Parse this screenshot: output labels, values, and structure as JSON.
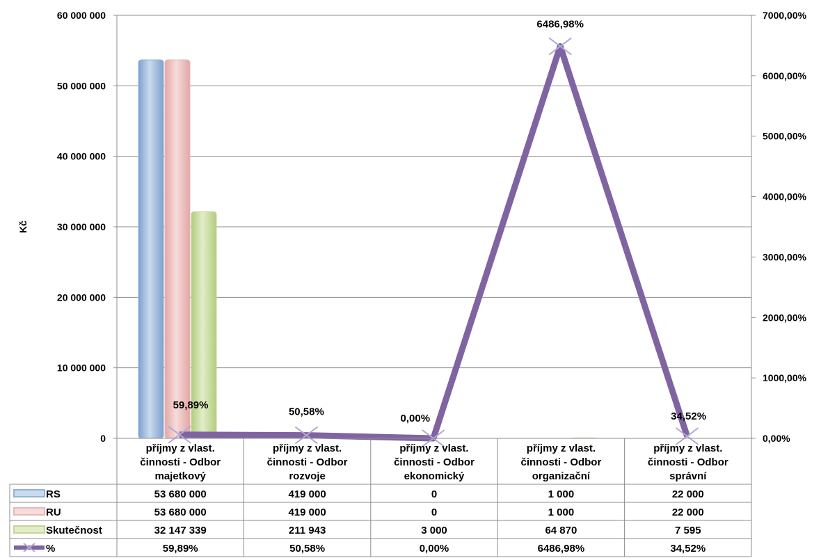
{
  "chart_data": {
    "type": "bar",
    "categories": [
      "příjmy z vlast. činnosti - Odbor majetkový",
      "příjmy z vlast. činnosti - Odbor rozvoje",
      "příjmy z vlast. činnosti - Odbor ekonomický",
      "příjmy z vlast. činnosti - Odbor organizační",
      "příjmy z vlast. činnosti - Odbor správní"
    ],
    "category_lines": [
      [
        "příjmy z vlast.",
        "činnosti - Odbor",
        "majetkový"
      ],
      [
        "příjmy z vlast.",
        "činnosti - Odbor",
        "rozvoje"
      ],
      [
        "příjmy z vlast.",
        "činnosti - Odbor",
        "ekonomický"
      ],
      [
        "příjmy z vlast.",
        "činnosti - Odbor",
        "organizační"
      ],
      [
        "příjmy z vlast.",
        "činnosti - Odbor",
        "správní"
      ]
    ],
    "series": [
      {
        "name": "RS",
        "kind": "bar",
        "color": "#95b3d7",
        "values": [
          53680000,
          419000,
          0,
          1000,
          22000
        ],
        "labels": [
          "53 680 000",
          "419 000",
          "0",
          "1 000",
          "22 000"
        ]
      },
      {
        "name": "RU",
        "kind": "bar",
        "color": "#e6b9b8",
        "values": [
          53680000,
          419000,
          0,
          1000,
          22000
        ],
        "labels": [
          "53 680 000",
          "419 000",
          "0",
          "1 000",
          "22 000"
        ]
      },
      {
        "name": "Skutečnost",
        "kind": "bar",
        "color": "#c3d69b",
        "values": [
          32147339,
          211943,
          3000,
          64870,
          7595
        ],
        "labels": [
          "32 147 339",
          "211 943",
          "3 000",
          "64 870",
          "7 595"
        ]
      },
      {
        "name": "%",
        "kind": "line",
        "axis": "secondary",
        "color": "#8064a2",
        "values": [
          59.89,
          50.58,
          0.0,
          6486.98,
          34.52
        ],
        "labels": [
          "59,89%",
          "50,58%",
          "0,00%",
          "6486,98%",
          "34,52%"
        ]
      }
    ],
    "ylabel": "Kč",
    "ylim": [
      0,
      60000000
    ],
    "y_ticks": [
      {
        "value": 0,
        "label": "0"
      },
      {
        "value": 10000000,
        "label": "10 000 000"
      },
      {
        "value": 20000000,
        "label": "20 000 000"
      },
      {
        "value": 30000000,
        "label": "30 000 000"
      },
      {
        "value": 40000000,
        "label": "40 000 000"
      },
      {
        "value": 50000000,
        "label": "50 000 000"
      },
      {
        "value": 60000000,
        "label": "60 000 000"
      }
    ],
    "y2lim": [
      0,
      7000
    ],
    "y2_ticks": [
      {
        "value": 0,
        "label": "0,00%"
      },
      {
        "value": 1000,
        "label": "1000,00%"
      },
      {
        "value": 2000,
        "label": "2000,00%"
      },
      {
        "value": 3000,
        "label": "3000,00%"
      },
      {
        "value": 4000,
        "label": "4000,00%"
      },
      {
        "value": 5000,
        "label": "5000,00%"
      },
      {
        "value": 6000,
        "label": "6000,00%"
      },
      {
        "value": 7000,
        "label": "7000,00%"
      }
    ],
    "grid": true,
    "legend": "data table"
  }
}
